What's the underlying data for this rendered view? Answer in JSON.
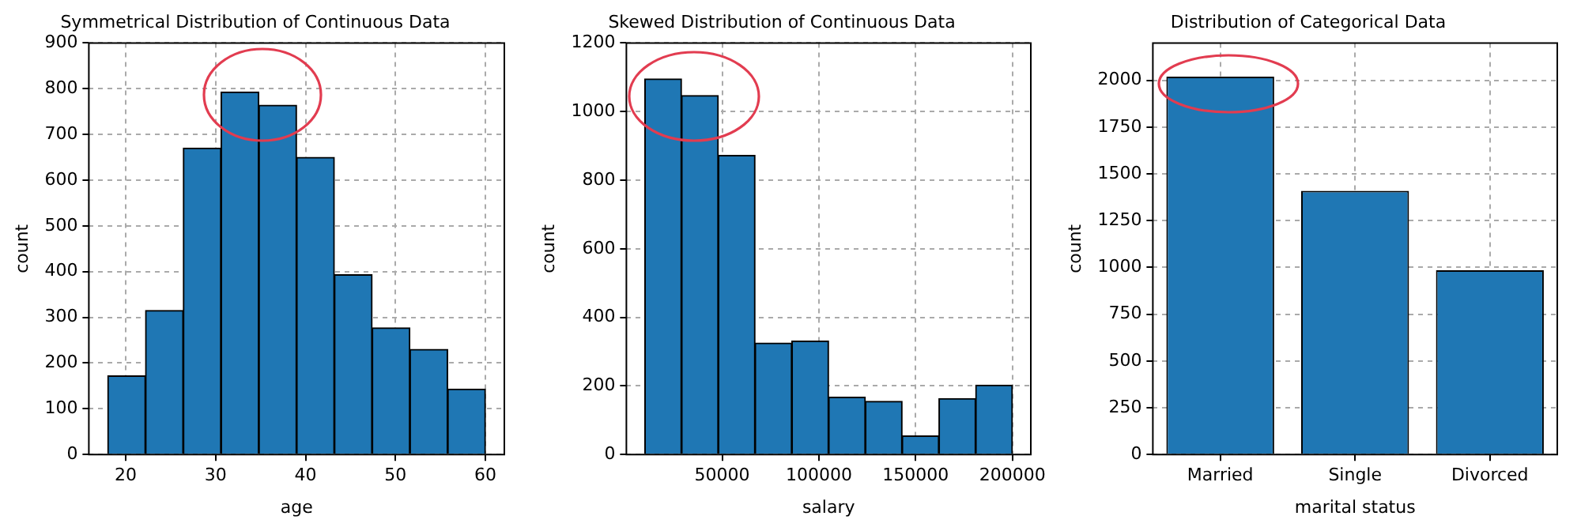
{
  "chart_data": [
    {
      "type": "histogram",
      "title": "Symmetrical Distribution of Continuous Data",
      "xlabel": "age",
      "ylabel": "count",
      "color": "#1f77b4",
      "bins": [
        18,
        22.2,
        26.4,
        30.6,
        34.8,
        39,
        43.2,
        47.4,
        51.6,
        55.8,
        60
      ],
      "values": [
        172,
        315,
        670,
        793,
        764,
        650,
        393,
        277,
        230,
        143
      ],
      "xlim": [
        15.9,
        62.1
      ],
      "xticks": [
        20,
        30,
        40,
        50,
        60
      ],
      "ylim": [
        0,
        900
      ],
      "yticks": [
        0,
        100,
        200,
        300,
        400,
        500,
        600,
        700,
        800,
        900
      ],
      "grid": true
    },
    {
      "type": "histogram",
      "title": "Skewed Distribution of Continuous Data",
      "xlabel": "salary",
      "ylabel": "count",
      "color": "#1f77b4",
      "bins": [
        10000,
        29000,
        48000,
        67000,
        86000,
        105000,
        124000,
        143000,
        162000,
        181000,
        200000
      ],
      "values": [
        1095,
        1047,
        872,
        325,
        331,
        167,
        155,
        54,
        163,
        202
      ],
      "xlim": [
        500,
        209500
      ],
      "xticks": [
        50000,
        100000,
        150000,
        200000
      ],
      "ylim": [
        0,
        1200
      ],
      "yticks": [
        0,
        200,
        400,
        600,
        800,
        1000,
        1200
      ],
      "grid": true
    },
    {
      "type": "bar",
      "title": "Distribution of Categorical Data",
      "xlabel": "marital status",
      "ylabel": "count",
      "color": "#1f77b4",
      "categories": [
        "Married",
        "Single",
        "Divorced"
      ],
      "values": [
        2020,
        1410,
        985
      ],
      "ylim": [
        0,
        2200
      ],
      "yticks": [
        0,
        250,
        500,
        750,
        1000,
        1250,
        1500,
        1750,
        2000
      ],
      "grid": true
    }
  ]
}
